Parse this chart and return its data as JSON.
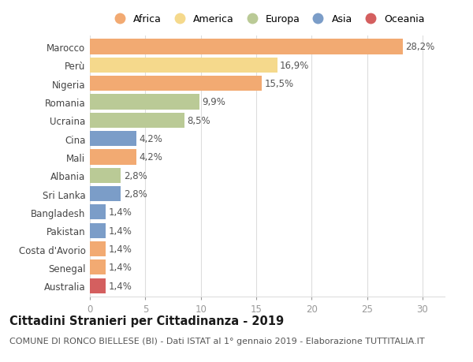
{
  "countries": [
    "Marocco",
    "Perù",
    "Nigeria",
    "Romania",
    "Ucraina",
    "Cina",
    "Mali",
    "Albania",
    "Sri Lanka",
    "Bangladesh",
    "Pakistan",
    "Costa d'Avorio",
    "Senegal",
    "Australia"
  ],
  "values": [
    28.2,
    16.9,
    15.5,
    9.9,
    8.5,
    4.2,
    4.2,
    2.8,
    2.8,
    1.4,
    1.4,
    1.4,
    1.4,
    1.4
  ],
  "labels": [
    "28,2%",
    "16,9%",
    "15,5%",
    "9,9%",
    "8,5%",
    "4,2%",
    "4,2%",
    "2,8%",
    "2,8%",
    "1,4%",
    "1,4%",
    "1,4%",
    "1,4%",
    "1,4%"
  ],
  "continents": [
    "Africa",
    "America",
    "Africa",
    "Europa",
    "Europa",
    "Asia",
    "Africa",
    "Europa",
    "Asia",
    "Asia",
    "Asia",
    "Africa",
    "Africa",
    "Oceania"
  ],
  "continent_colors": {
    "Africa": "#F2AA72",
    "America": "#F5D98C",
    "Europa": "#BACA96",
    "Asia": "#7B9DC8",
    "Oceania": "#D45F5F"
  },
  "legend_order": [
    "Africa",
    "America",
    "Europa",
    "Asia",
    "Oceania"
  ],
  "title": "Cittadini Stranieri per Cittadinanza - 2019",
  "subtitle": "COMUNE DI RONCO BIELLESE (BI) - Dati ISTAT al 1° gennaio 2019 - Elaborazione TUTTITALIA.IT",
  "xlim": [
    0,
    32
  ],
  "xticks": [
    0,
    5,
    10,
    15,
    20,
    25,
    30
  ],
  "background_color": "#ffffff",
  "grid_color": "#dddddd",
  "bar_height": 0.82,
  "title_fontsize": 10.5,
  "subtitle_fontsize": 8.0,
  "tick_fontsize": 8.5,
  "label_fontsize": 8.5
}
